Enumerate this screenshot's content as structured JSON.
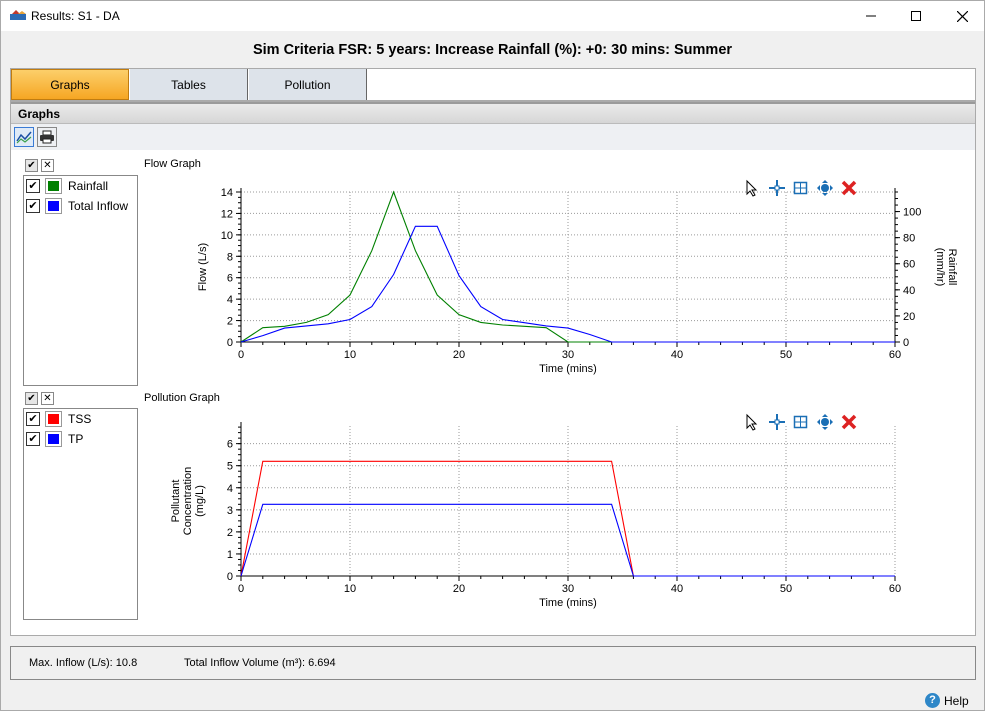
{
  "window": {
    "title": "Results: S1 - DA",
    "heading": "Sim Criteria FSR: 5 years: Increase Rainfall (%): +0: 30 mins: Summer"
  },
  "tabs": [
    {
      "label": "Graphs",
      "active": true
    },
    {
      "label": "Tables",
      "active": false
    },
    {
      "label": "Pollution",
      "active": false
    }
  ],
  "section": {
    "title": "Graphs"
  },
  "toolbar_icons": [
    "line-chart-icon",
    "print-icon"
  ],
  "graph_tools": [
    "pointer-icon",
    "crosshair-icon",
    "zoom-box-icon",
    "pan-icon",
    "close-icon"
  ],
  "flow_legend": {
    "items": [
      {
        "label": "Rainfall",
        "color": "#008000",
        "checked": true
      },
      {
        "label": "Total Inflow",
        "color": "#0000ff",
        "checked": true
      }
    ]
  },
  "pollution_legend": {
    "items": [
      {
        "label": "TSS",
        "color": "#ff0000",
        "checked": true
      },
      {
        "label": "TP",
        "color": "#0000ff",
        "checked": true
      }
    ]
  },
  "chart_data": [
    {
      "type": "line",
      "title": "Flow Graph",
      "xlabel": "Time (mins)",
      "ylabel": "Flow (L/s)",
      "y2label": "Rainfall\n(mm/hr)",
      "xlim": [
        0,
        60
      ],
      "ylim": [
        0,
        14
      ],
      "y2lim": [
        0,
        115
      ],
      "xticks": [
        0,
        10,
        20,
        30,
        40,
        50,
        60
      ],
      "yticks": [
        0,
        2,
        4,
        6,
        8,
        10,
        12,
        14
      ],
      "y2ticks": [
        0,
        20,
        40,
        60,
        80,
        100
      ],
      "grid": true,
      "series": [
        {
          "name": "Rainfall",
          "color": "#008000",
          "axis": "y2",
          "x": [
            0,
            2,
            4,
            6,
            8,
            10,
            12,
            14,
            16,
            18,
            20,
            22,
            24,
            26,
            28,
            30,
            60
          ],
          "y": [
            0,
            11,
            12,
            15,
            21,
            36,
            70,
            115,
            70,
            36,
            21,
            15,
            13,
            12,
            11,
            0,
            0
          ]
        },
        {
          "name": "Total Inflow",
          "color": "#0000ff",
          "axis": "y",
          "x": [
            0,
            2,
            4,
            6,
            8,
            10,
            12,
            14,
            16,
            18,
            20,
            22,
            24,
            26,
            28,
            30,
            32,
            34,
            60
          ],
          "y": [
            0,
            0.6,
            1.3,
            1.5,
            1.7,
            2.1,
            3.3,
            6.3,
            10.8,
            10.8,
            6.2,
            3.3,
            2.1,
            1.8,
            1.5,
            1.3,
            0.7,
            0,
            0
          ]
        }
      ]
    },
    {
      "type": "line",
      "title": "Pollution Graph",
      "xlabel": "Time (mins)",
      "ylabel": "Pollutant\nConcentration\n(mg/L)",
      "xlim": [
        0,
        60
      ],
      "ylim": [
        0,
        6.8
      ],
      "xticks": [
        0,
        10,
        20,
        30,
        40,
        50,
        60
      ],
      "yticks": [
        0,
        1,
        2,
        3,
        4,
        5,
        6
      ],
      "grid": true,
      "series": [
        {
          "name": "TSS",
          "color": "#ff0000",
          "x": [
            0,
            2,
            34,
            36,
            60
          ],
          "y": [
            0,
            5.2,
            5.2,
            0,
            0
          ]
        },
        {
          "name": "TP",
          "color": "#0000ff",
          "x": [
            0,
            2,
            34,
            36,
            60
          ],
          "y": [
            0,
            3.25,
            3.25,
            0,
            0
          ]
        }
      ]
    }
  ],
  "status": {
    "max_inflow": "Max. Inflow (L/s): 10.8",
    "total_volume": "Total Inflow Volume (m³): 6.694"
  },
  "help": {
    "label": "Help"
  }
}
